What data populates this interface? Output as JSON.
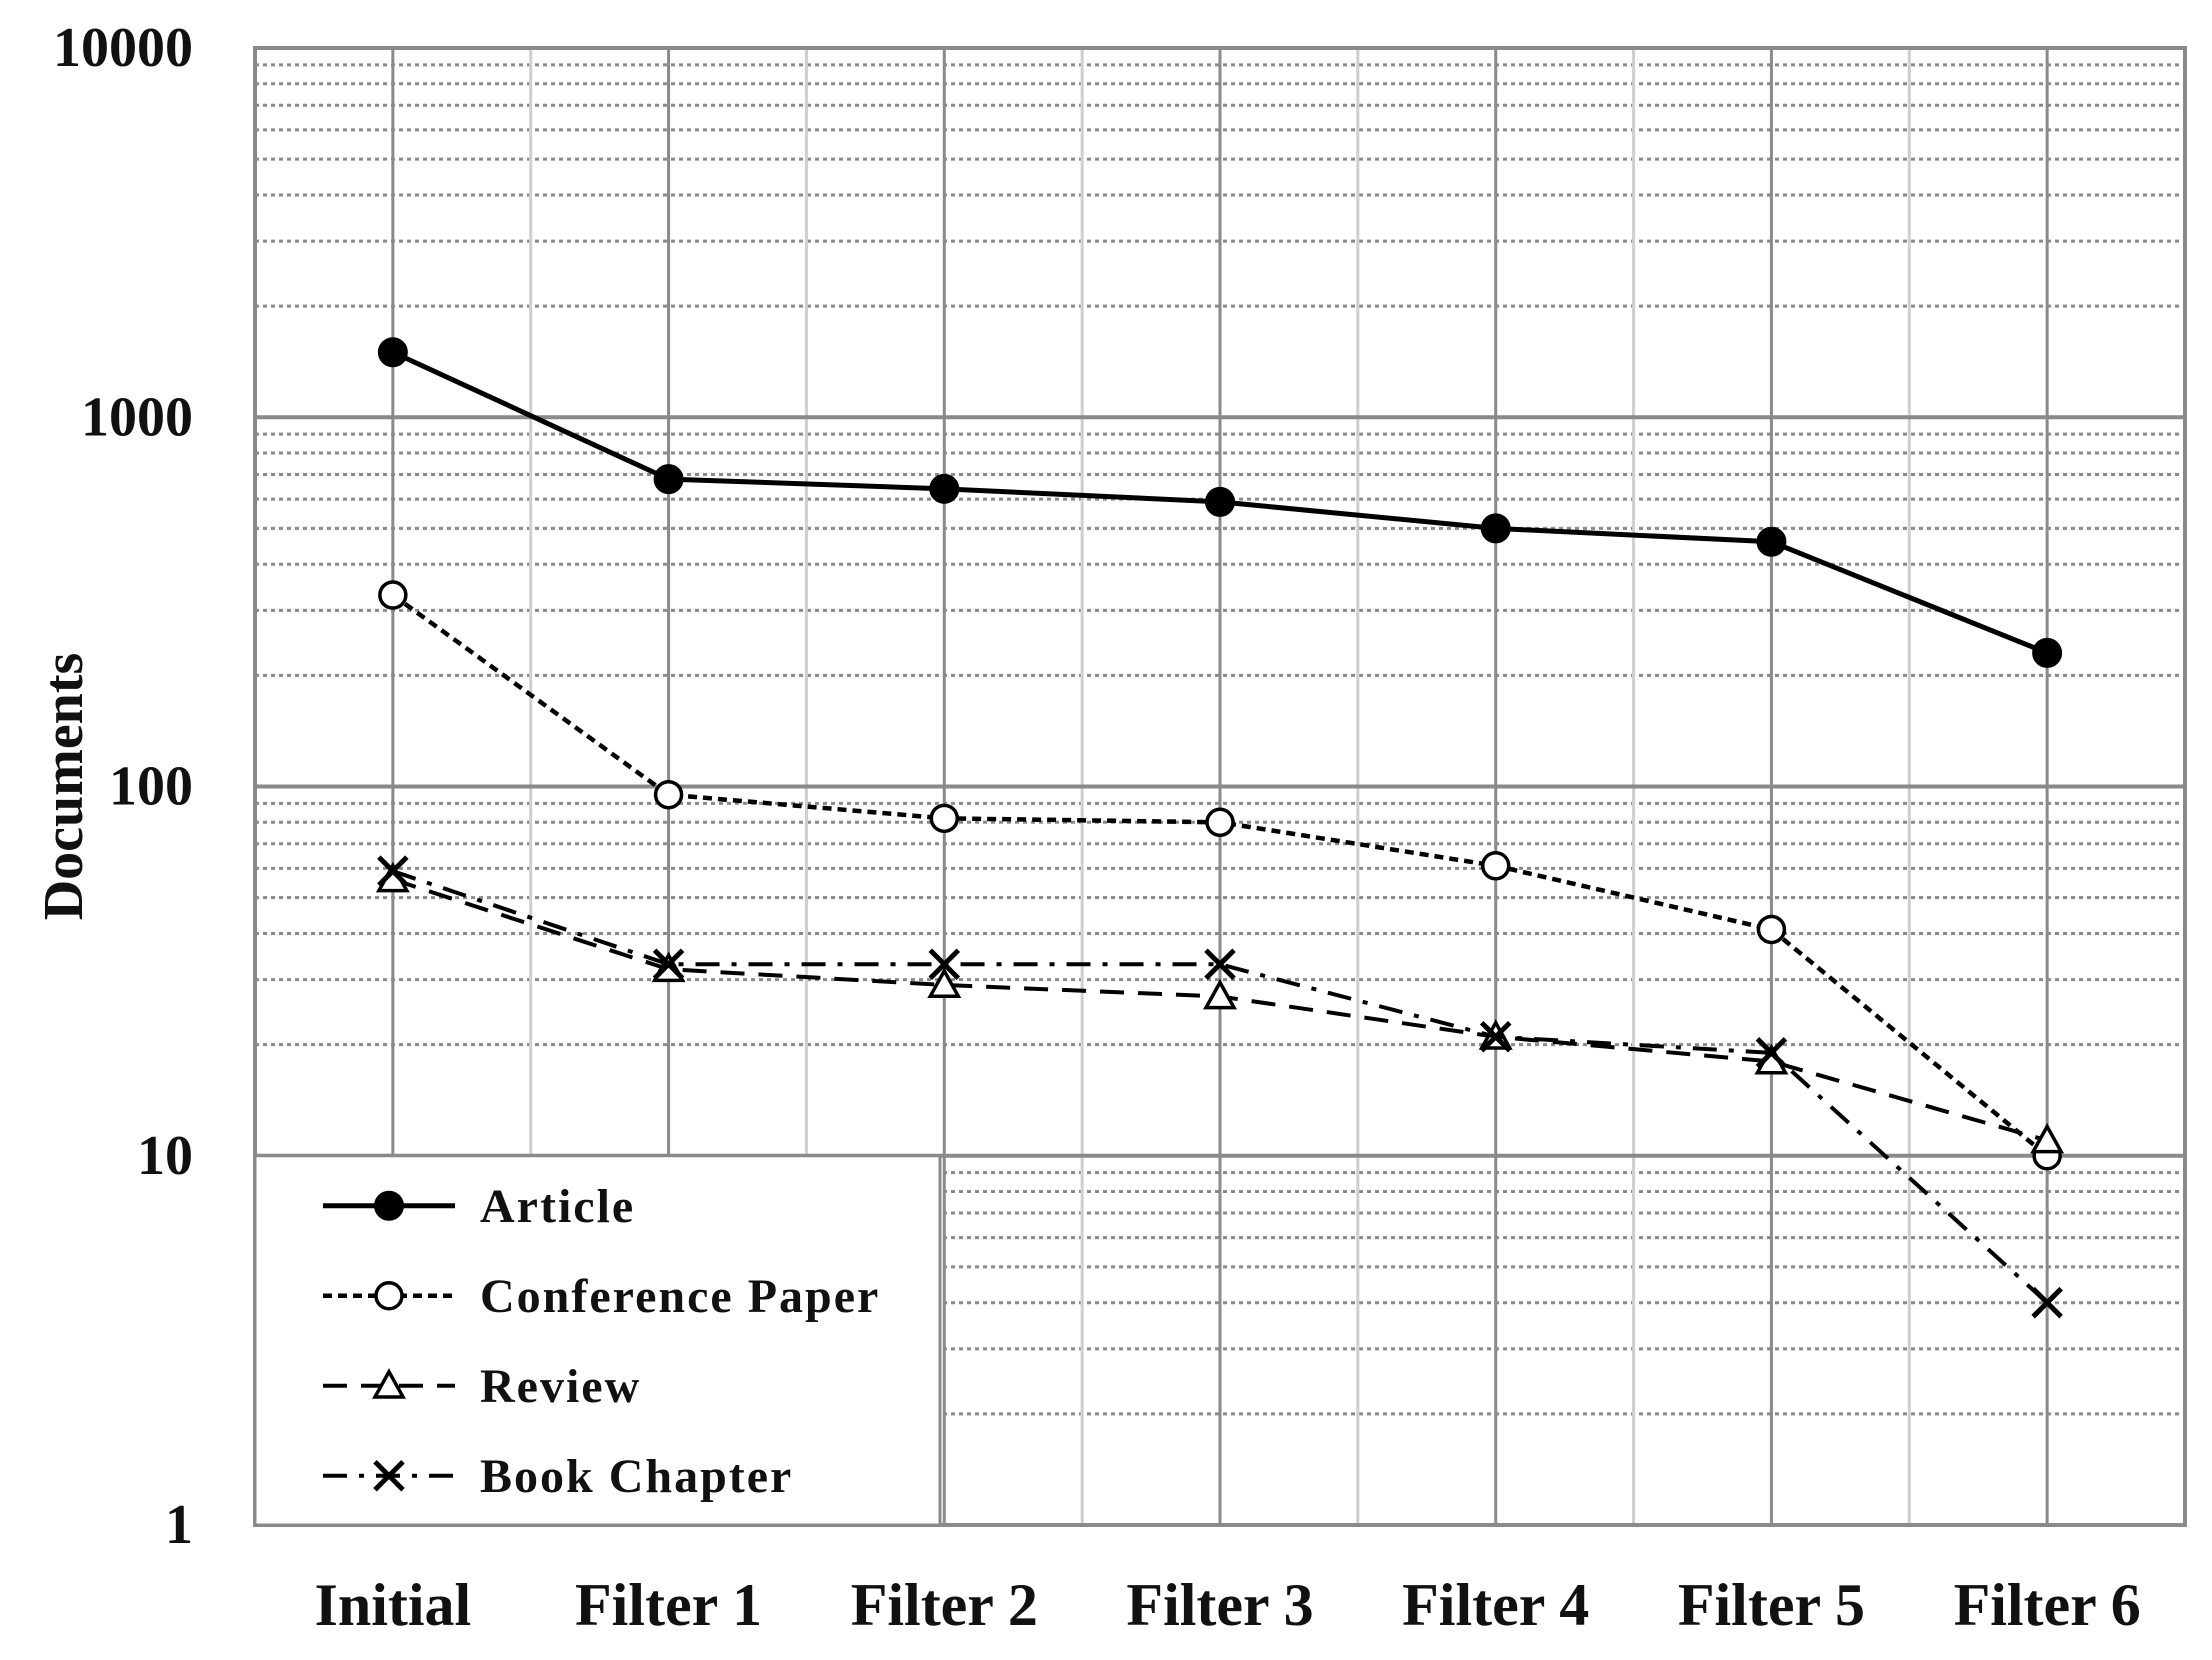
{
  "chart_data": {
    "type": "line",
    "title": "",
    "xlabel": "",
    "ylabel": "Documents",
    "yscale": "log",
    "ylim": [
      1,
      10000
    ],
    "yticks": [
      1,
      10,
      100,
      1000,
      10000
    ],
    "ytick_labels": [
      "1",
      "10",
      "100",
      "1000",
      "10000"
    ],
    "grid": true,
    "legend_position": "bottom-left",
    "categories": [
      "Initial",
      "Filter 1",
      "Filter 2",
      "Filter 3",
      "Filter 4",
      "Filter 5",
      "Filter 6"
    ],
    "series": [
      {
        "name": "Article",
        "values": [
          1500,
          680,
          640,
          590,
          500,
          460,
          230
        ],
        "marker": "filled-circle",
        "line": "solid"
      },
      {
        "name": "Conference Paper",
        "values": [
          330,
          95,
          82,
          80,
          61,
          41,
          10
        ],
        "marker": "open-circle",
        "line": "dotted"
      },
      {
        "name": "Review",
        "values": [
          56,
          32,
          29,
          27,
          21,
          18,
          11
        ],
        "marker": "open-triangle",
        "line": "dashed"
      },
      {
        "name": "Book Chapter",
        "values": [
          59,
          33,
          33,
          33,
          21,
          19,
          4
        ],
        "marker": "x",
        "line": "dash-dot"
      }
    ]
  }
}
